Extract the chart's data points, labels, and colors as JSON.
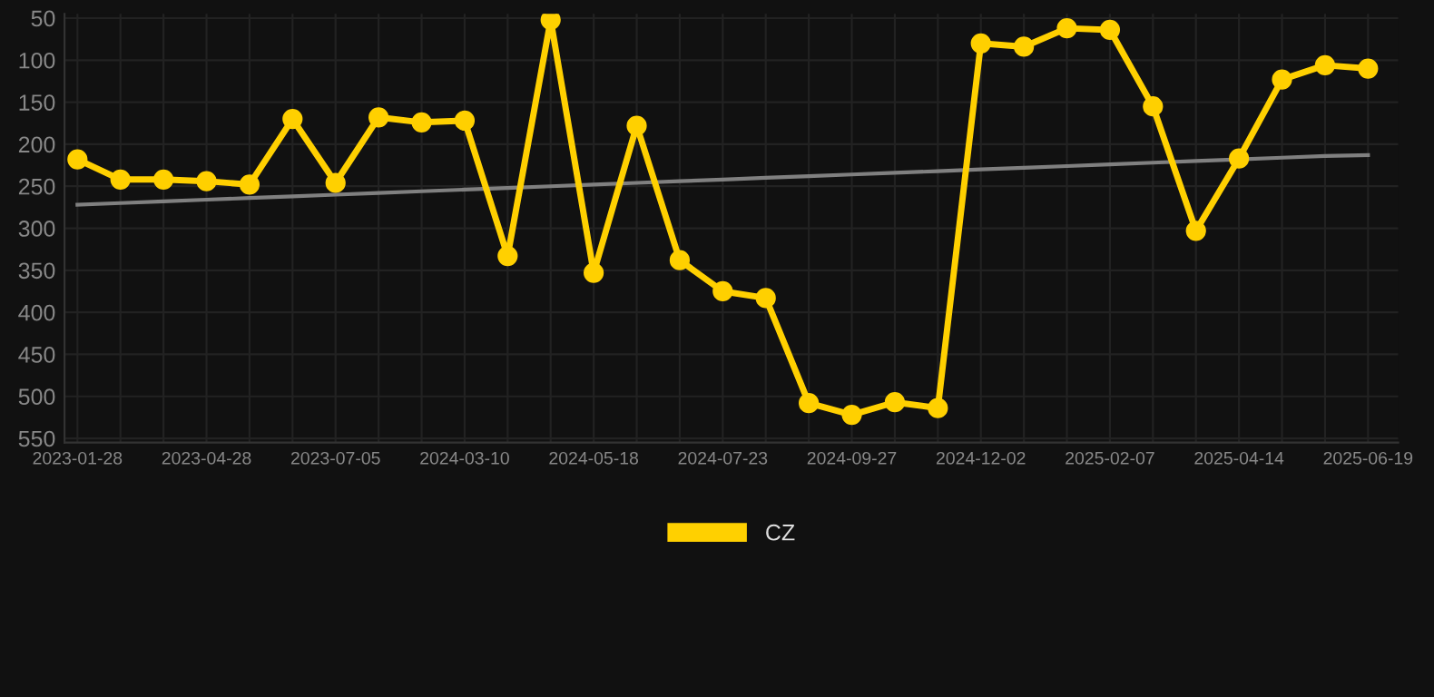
{
  "chart_data": {
    "type": "line",
    "categories": [
      "2023-01-28",
      null,
      null,
      "2023-04-28",
      null,
      null,
      "2023-07-05",
      null,
      null,
      "2024-03-10",
      null,
      null,
      "2024-05-18",
      null,
      null,
      "2024-07-23",
      null,
      null,
      "2024-09-27",
      null,
      null,
      "2024-12-02",
      null,
      null,
      "2025-02-07",
      null,
      null,
      "2025-04-14",
      null,
      null,
      "2025-06-19"
    ],
    "series": [
      {
        "name": "CZ",
        "color": "#ffd000",
        "marker": "circle",
        "values": [
          218,
          242,
          242,
          244,
          248,
          170,
          246,
          168,
          174,
          172,
          333,
          52,
          353,
          178,
          338,
          375,
          383,
          508,
          522,
          507,
          514,
          80,
          84,
          62,
          64,
          155,
          303,
          217,
          123,
          106,
          110
        ]
      },
      {
        "type": "line",
        "color": "#808080",
        "marker": "none",
        "values": [
          272,
          270,
          268,
          266,
          264,
          262,
          260,
          258,
          256,
          254,
          252,
          250,
          248,
          246,
          244,
          242,
          240,
          238,
          236,
          234,
          232,
          230,
          228,
          226,
          224,
          222,
          220,
          218,
          216,
          214,
          213
        ]
      }
    ],
    "ylim": [
      555,
      45
    ],
    "yticks": [
      50,
      100,
      150,
      200,
      250,
      300,
      350,
      400,
      450,
      500,
      550
    ],
    "grid": true,
    "legend": "bottom"
  }
}
